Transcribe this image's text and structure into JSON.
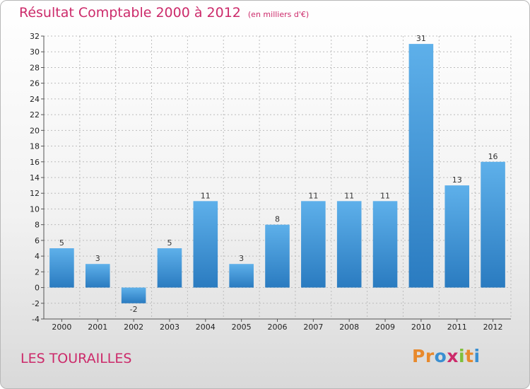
{
  "title": "Résultat Comptable 2000 à 2012",
  "unit": "(en milliers d'€)",
  "commune": "LES TOURAILLES",
  "logo": {
    "text": "Proxiti",
    "colors": [
      "#e8892c",
      "#e8892c",
      "#3a8fd1",
      "#cc2a6a",
      "#7fbf3a",
      "#e8892c",
      "#3a8fd1"
    ]
  },
  "colors": {
    "title": "#cc2a6a",
    "bar_top": "#5eb0ea",
    "bar_bottom": "#2a7bc0",
    "grid": "#bcbcbc"
  },
  "chart_data": {
    "type": "bar",
    "title": "Résultat Comptable 2000 à 2012",
    "categories": [
      "2000",
      "2001",
      "2002",
      "2003",
      "2004",
      "2005",
      "2006",
      "2007",
      "2008",
      "2009",
      "2010",
      "2011",
      "2012"
    ],
    "values": [
      5,
      3,
      -2,
      5,
      11,
      3,
      8,
      11,
      11,
      11,
      31,
      13,
      16
    ],
    "value_labels": [
      "5",
      "3",
      "-2",
      "5",
      "11",
      "3",
      "8",
      "11",
      "11",
      "11",
      "31",
      "13",
      "16"
    ],
    "ylim": [
      -4,
      32
    ],
    "yticks": [
      -4,
      -2,
      0,
      2,
      4,
      6,
      8,
      10,
      12,
      14,
      16,
      18,
      20,
      22,
      24,
      26,
      28,
      30,
      32
    ],
    "grid": true,
    "xlabel": "",
    "ylabel": ""
  }
}
